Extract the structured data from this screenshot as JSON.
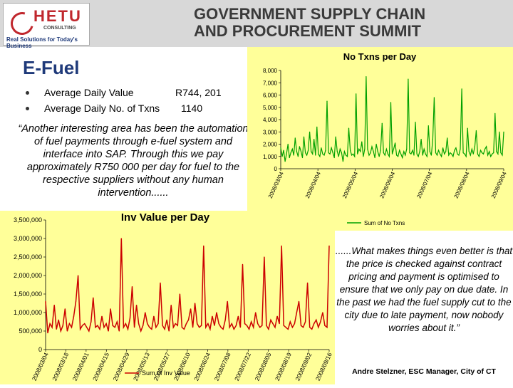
{
  "header": {
    "logo_name": "HETU",
    "logo_sub": "CONSULTING",
    "logo_tagline": "Real Solutions for Today's Business",
    "summit_line1": "GOVERNMENT SUPPLY CHAIN",
    "summit_line2": "AND PROCUREMENT SUMMIT"
  },
  "slide": {
    "title": "E-Fuel",
    "stats": [
      {
        "label": "Average Daily Value",
        "value": "R744, 201"
      },
      {
        "label": "Average Daily No. of Txns",
        "value": "1140"
      }
    ],
    "quote_left": "“Another interesting area has been the automation of fuel payments through e-fuel system and interface into SAP.   Through this we pay approximately R750 000 per day for fuel to the respective suppliers without any human intervention......",
    "quote_right": "......What makes things even better is that the price is checked against contract pricing and payment is optimised to ensure that we only pay on due date. In the past we had the fuel supply cut to the city due to late payment, now nobody worries about it.”",
    "attribution": "Andre Stelzner, ESC Manager, City of CT"
  },
  "colors": {
    "chart_bg": "#ffff99",
    "series_txns": "#00a000",
    "series_value": "#cc0000",
    "title_blue": "#1f3a7a",
    "header_gray": "#d8d8d8"
  },
  "chart_data": [
    {
      "type": "line",
      "title": "No Txns per Day",
      "legend": "Sum of No Txns",
      "legend_position": "bottom",
      "ylim": [
        0,
        8000
      ],
      "y_ticks": [
        "0",
        "1,000",
        "2,000",
        "3,000",
        "4,000",
        "5,000",
        "6,000",
        "7,000",
        "8,000"
      ],
      "x_tick_labels": [
        "2008/03/04",
        "2008/04/04",
        "2008/05/04",
        "2008/06/04",
        "2008/07/04",
        "2008/08/04",
        "2008/09/04"
      ],
      "series": [
        {
          "name": "Sum of No Txns",
          "values": [
            1700,
            1000,
            1500,
            600,
            1200,
            2000,
            900,
            1300,
            1600,
            1100,
            2500,
            1400,
            1000,
            1800,
            1400,
            900,
            2600,
            1300,
            1100,
            1500,
            3000,
            1400,
            1200,
            2400,
            1100,
            3400,
            1200,
            1000,
            1700,
            1200,
            1100,
            1500,
            5500,
            1300,
            1200,
            1700,
            1300,
            900,
            2600,
            1400,
            1000,
            1600,
            1300,
            600,
            1400,
            1100,
            1000,
            3300,
            1500,
            1100,
            1200,
            1000,
            6100,
            1200,
            1600,
            1400,
            2200,
            1000,
            1600,
            7500,
            1600,
            1100,
            1300,
            1800,
            1400,
            900,
            2000,
            1400,
            1000,
            1500,
            3700,
            1300,
            1100,
            1600,
            1200,
            1000,
            5400,
            1200,
            1600,
            2100,
            1100,
            1000,
            1500,
            1200,
            900,
            1400,
            1100,
            1600,
            7300,
            1300,
            1200,
            1500,
            1100,
            3800,
            1200,
            1000,
            1400,
            2400,
            1100,
            1600,
            1200,
            1000,
            3500,
            1400,
            1100,
            2400,
            5800,
            1300,
            1100,
            1500,
            1200,
            1000,
            1700,
            1200,
            1400,
            2500,
            1100,
            1300,
            1200,
            1000,
            1500,
            1700,
            1200,
            1100,
            1600,
            6500,
            1300,
            1200,
            1000,
            3300,
            1400,
            1100,
            1600,
            1200,
            1800,
            3100,
            1200,
            1000,
            1500,
            1300,
            1200,
            1600,
            1800,
            1100,
            1400,
            1000,
            1200,
            1300,
            4500,
            1400,
            1200,
            3000,
            1300,
            1100,
            3000
          ]
        }
      ]
    },
    {
      "type": "line",
      "title": "Inv Value per Day",
      "legend": "Sum of Inv Value",
      "legend_position": "bottom",
      "ylim": [
        0,
        3500000
      ],
      "y_ticks": [
        "0",
        "500,000",
        "1,000,000",
        "1,500,000",
        "2,000,000",
        "2,500,000",
        "3,000,000",
        "3,500,000"
      ],
      "x_tick_labels": [
        "2008/03/04",
        "2008/03/18",
        "2008/04/01",
        "2008/04/15",
        "2008/04/29",
        "2008/05/13",
        "2008/05/27",
        "2008/06/10",
        "2008/06/24",
        "2008/07/08",
        "2008/07/22",
        "2008/08/05",
        "2008/08/19",
        "2008/09/02",
        "2008/09/16"
      ],
      "series": [
        {
          "name": "Sum of Inv Value",
          "values": [
            1300000,
            450000,
            700000,
            600000,
            1200000,
            550000,
            800000,
            500000,
            650000,
            1100000,
            500000,
            700000,
            600000,
            900000,
            1300000,
            2000000,
            550000,
            650000,
            700000,
            600000,
            500000,
            750000,
            1400000,
            600000,
            650000,
            550000,
            900000,
            600000,
            700000,
            500000,
            1100000,
            650000,
            600000,
            750000,
            500000,
            3000000,
            600000,
            700000,
            550000,
            850000,
            1700000,
            600000,
            1200000,
            700000,
            500000,
            650000,
            1000000,
            700000,
            600000,
            550000,
            900000,
            600000,
            700000,
            1800000,
            650000,
            550000,
            800000,
            500000,
            1200000,
            600000,
            700000,
            650000,
            1500000,
            600000,
            550000,
            700000,
            800000,
            1100000,
            600000,
            1250000,
            700000,
            600000,
            650000,
            2800000,
            600000,
            700000,
            550000,
            900000,
            650000,
            1000000,
            700000,
            600000,
            550000,
            800000,
            1300000,
            600000,
            700000,
            550000,
            650000,
            900000,
            600000,
            2300000,
            700000,
            650000,
            550000,
            750000,
            600000,
            1000000,
            700000,
            600000,
            650000,
            2500000,
            650000,
            550000,
            800000,
            700000,
            600000,
            900000,
            700000,
            2800000,
            650000,
            600000,
            550000,
            750000,
            600000,
            700000,
            1000000,
            1300000,
            650000,
            600000,
            750000,
            1800000,
            600000,
            550000,
            700000,
            800000,
            600000,
            750000,
            1000000,
            650000,
            600000,
            2800000
          ]
        }
      ]
    }
  ]
}
